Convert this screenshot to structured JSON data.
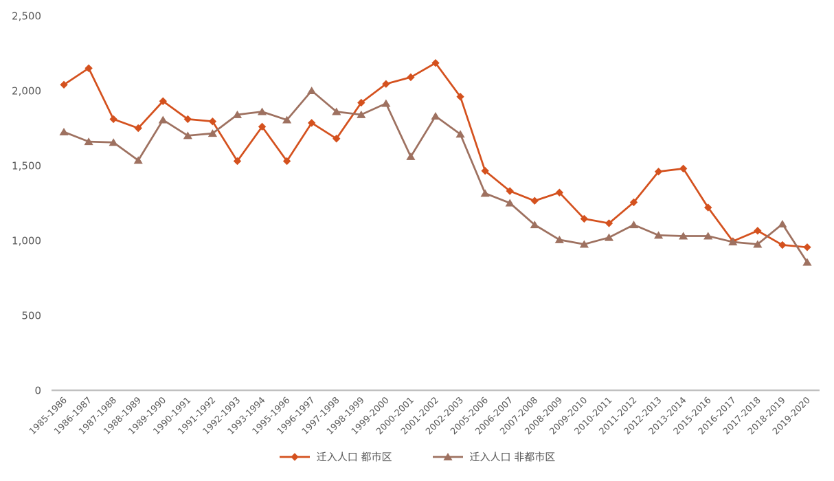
{
  "chart_data": {
    "type": "line",
    "title": "",
    "xlabel": "",
    "ylabel": "",
    "categories": [
      "1985-1986",
      "1986-1987",
      "1987-1988",
      "1988-1989",
      "1989-1990",
      "1990-1991",
      "1991-1992",
      "1992-1993",
      "1993-1994",
      "1995-1996",
      "1996-1997",
      "1997-1998",
      "1998-1999",
      "1999-2000",
      "2000-2001",
      "2001-2002",
      "2002-2003",
      "2005-2006",
      "2006-2007",
      "2007-2008",
      "2008-2009",
      "2009-2010",
      "2010-2011",
      "2011-2012",
      "2012-2013",
      "2013-2014",
      "2015-2016",
      "2016-2017",
      "2017-2018",
      "2018-2019",
      "2019-2020"
    ],
    "series": [
      {
        "name": "迁入人口 都市区",
        "marker": "diamond",
        "color": "#D4511E",
        "values": [
          2040,
          2150,
          1810,
          1750,
          1930,
          1810,
          1795,
          1530,
          1760,
          1530,
          1785,
          1680,
          1920,
          2045,
          2090,
          2185,
          1960,
          1465,
          1330,
          1265,
          1320,
          1145,
          1115,
          1255,
          1460,
          1480,
          1220,
          995,
          1065,
          970,
          955
        ]
      },
      {
        "name": "迁入人口 非都市区",
        "marker": "triangle",
        "color": "#9E7160",
        "values": [
          1725,
          1660,
          1655,
          1535,
          1805,
          1700,
          1715,
          1840,
          1860,
          1805,
          2000,
          1860,
          1840,
          1915,
          1560,
          1830,
          1710,
          1315,
          1250,
          1105,
          1005,
          975,
          1020,
          1105,
          1035,
          1030,
          1030,
          990,
          975,
          1110,
          855
        ]
      }
    ],
    "ylim": [
      0,
      2500
    ],
    "yticks": [
      0,
      500,
      1000,
      1500,
      2000,
      2500
    ],
    "ytick_labels": [
      "0",
      "500",
      "1,000",
      "1,500",
      "2,000",
      "2,500"
    ],
    "grid": false,
    "legend_position": "bottom",
    "colors": {
      "background": "#FFFFFF",
      "axis_line": "#C0C0C0",
      "tick_label": "#595959",
      "legend_text": "#595959"
    }
  }
}
